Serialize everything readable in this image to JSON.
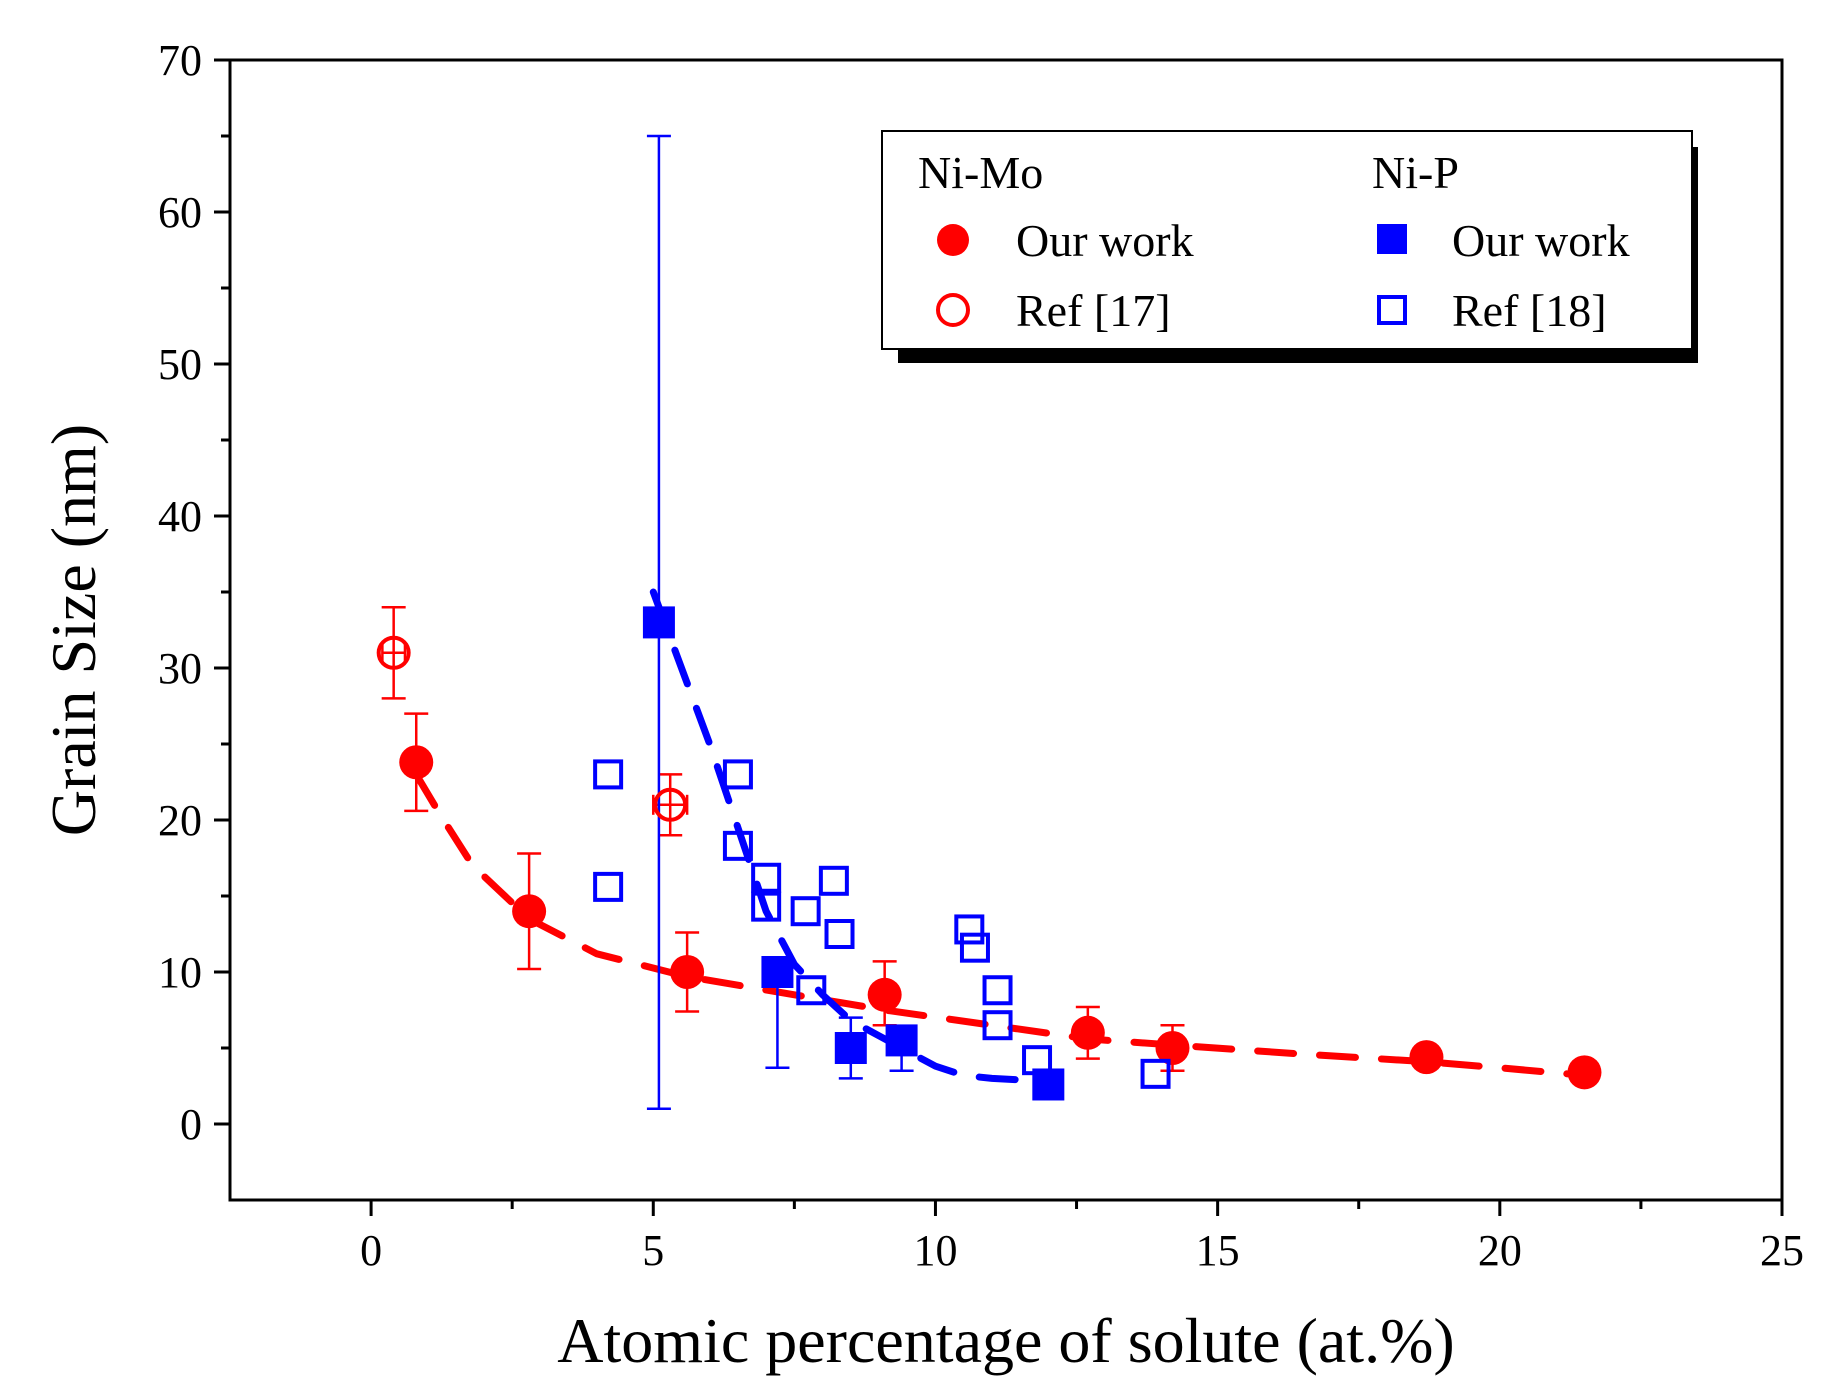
{
  "chart_data": {
    "type": "scatter",
    "title": "",
    "xlabel": "Atomic percentage of solute (at.%)",
    "ylabel": "Grain Size (nm)",
    "xlim": [
      -2.5,
      25
    ],
    "ylim": [
      -5,
      70
    ],
    "xticks": [
      0,
      5,
      10,
      15,
      20,
      25
    ],
    "yticks": [
      0,
      10,
      20,
      30,
      40,
      50,
      60,
      70
    ],
    "xtick_labels": [
      "0",
      "5",
      "10",
      "15",
      "20",
      "25"
    ],
    "ytick_labels": [
      "0",
      "10",
      "20",
      "30",
      "40",
      "50",
      "60",
      "70"
    ],
    "grid": false,
    "legend": {
      "position": "top-right",
      "group_titles": [
        "Ni-Mo",
        "Ni-P"
      ],
      "entries": [
        "Our work",
        "Ref [17]",
        "Our work",
        "Ref [18]"
      ]
    },
    "series": [
      {
        "name": "Ni-Mo Our work",
        "marker": "filled-circle",
        "color": "#ff0000",
        "x": [
          0.8,
          2.8,
          5.6,
          9.1,
          12.7,
          14.2,
          18.7,
          21.5
        ],
        "y": [
          23.8,
          14.0,
          10.0,
          8.5,
          6.0,
          5.0,
          4.4,
          3.4
        ],
        "err_up": [
          3.2,
          3.8,
          2.6,
          2.2,
          1.7,
          1.5,
          0.0,
          0.0
        ],
        "err_down": [
          3.2,
          3.8,
          2.6,
          2.0,
          1.7,
          1.5,
          0.0,
          0.0
        ]
      },
      {
        "name": "Ni-Mo Ref [17]",
        "marker": "open-circle",
        "color": "#ff0000",
        "x": [
          0.4,
          5.3
        ],
        "y": [
          31.0,
          21.0
        ],
        "err_up": [
          3.0,
          2.0
        ],
        "err_down": [
          3.0,
          2.0
        ],
        "xerr": [
          0.2,
          0.3
        ]
      },
      {
        "name": "Ni-P Our work",
        "marker": "filled-square",
        "color": "#0000ff",
        "x": [
          5.1,
          7.2,
          8.5,
          9.4,
          12.0
        ],
        "y": [
          33.0,
          10.0,
          5.0,
          5.5,
          2.6
        ],
        "err_up": [
          32.0,
          0.0,
          2.0,
          0.0,
          0.0
        ],
        "err_down": [
          32.0,
          6.3,
          2.0,
          2.0,
          0.0
        ]
      },
      {
        "name": "Ni-P Ref [18]",
        "marker": "open-square",
        "color": "#0000ff",
        "x": [
          4.2,
          4.2,
          6.5,
          6.5,
          7.0,
          7.0,
          7.7,
          7.8,
          8.2,
          8.3,
          10.6,
          10.7,
          11.1,
          11.1,
          11.8,
          13.9
        ],
        "y": [
          23.0,
          15.6,
          23.0,
          18.3,
          16.2,
          14.3,
          14.0,
          8.8,
          16.0,
          12.5,
          12.8,
          11.6,
          8.8,
          6.5,
          4.2,
          3.3
        ]
      }
    ],
    "fit_curves": [
      {
        "name": "Ni-Mo fit",
        "color": "#ff0000",
        "style": "dashed",
        "x": [
          0.8,
          1.2,
          1.8,
          2.8,
          4.0,
          5.6,
          7.5,
          9.1,
          11.0,
          12.7,
          14.2,
          16.5,
          18.7,
          20.0,
          21.5
        ],
        "y": [
          23.0,
          20.5,
          17.0,
          13.5,
          11.2,
          9.7,
          8.5,
          7.5,
          6.5,
          5.6,
          5.2,
          4.6,
          4.1,
          3.7,
          3.2
        ]
      },
      {
        "name": "Ni-P fit",
        "color": "#0000ff",
        "style": "dashed",
        "x": [
          5.0,
          5.5,
          6.0,
          6.5,
          7.0,
          7.5,
          8.0,
          8.5,
          9.0,
          9.5,
          10.0,
          10.5,
          11.0,
          11.5
        ],
        "y": [
          35.0,
          30.0,
          25.0,
          19.5,
          14.0,
          10.5,
          8.5,
          6.8,
          5.8,
          4.8,
          3.8,
          3.2,
          3.0,
          2.9
        ]
      }
    ]
  }
}
